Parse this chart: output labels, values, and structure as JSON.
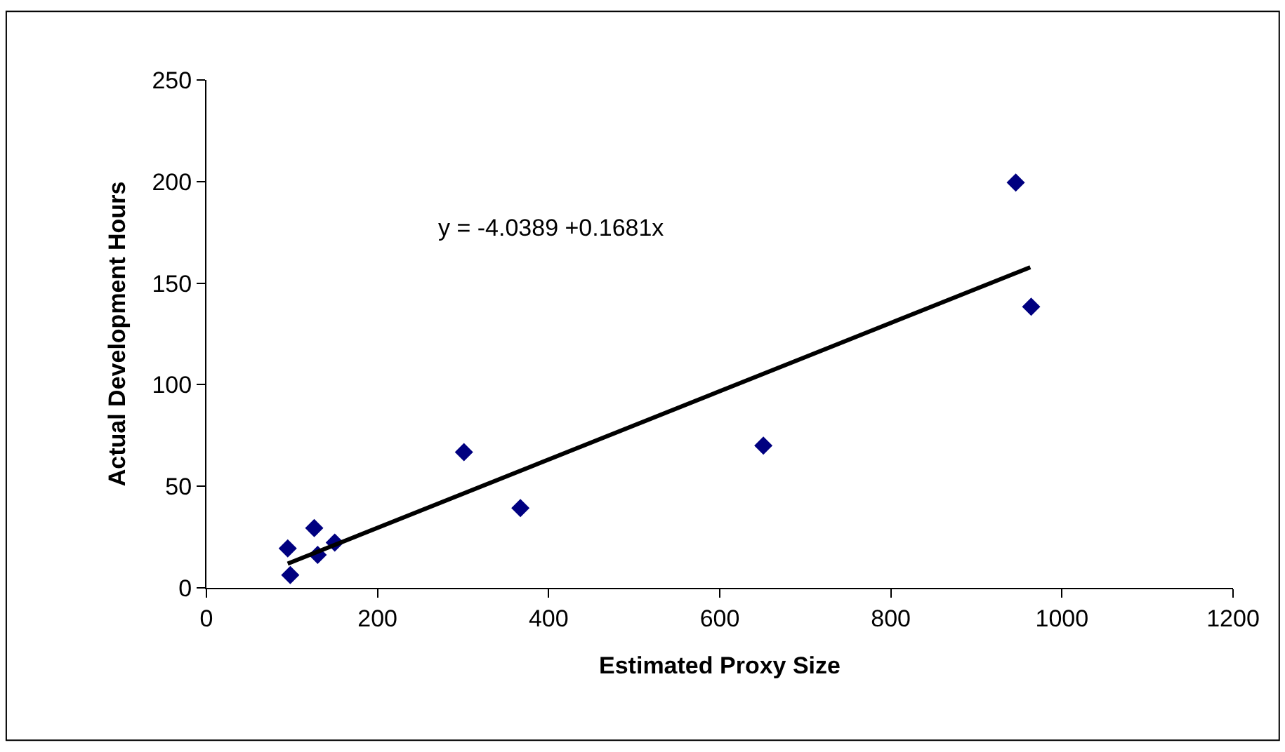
{
  "chart_data": {
    "type": "scatter",
    "xlabel": "Estimated Proxy Size",
    "ylabel": "Actual Development Hours",
    "xlim": [
      0,
      1200
    ],
    "xticks": [
      0,
      200,
      400,
      600,
      800,
      1000,
      1200
    ],
    "ylim": [
      0,
      250
    ],
    "yticks": [
      0,
      50,
      100,
      150,
      200,
      250
    ],
    "grid": false,
    "legend": false,
    "series": [
      {
        "color": "#000080",
        "marker": "diamond",
        "x": [
          95,
          98,
          126,
          130,
          150,
          301,
          367,
          651,
          946,
          964
        ],
        "values": [
          19.4,
          6.3,
          29.4,
          16.2,
          22.3,
          66.8,
          39.3,
          70,
          199.5,
          138.4
        ]
      },
      {
        "type": "line",
        "color": "#000000",
        "marker": "none",
        "line_style": "solid",
        "x": [
          95,
          963
        ],
        "values": [
          11.9,
          157.8
        ]
      }
    ],
    "annotations": [
      "y = -4.0389 +0.1681x"
    ]
  }
}
